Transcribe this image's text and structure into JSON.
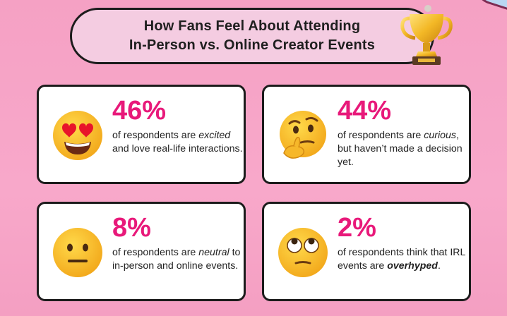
{
  "title": {
    "line1": "How Fans Feel About Attending",
    "line2": "In-Person vs. Online Creator Events"
  },
  "icons": {
    "trophy": "trophy-icon"
  },
  "colors": {
    "background": "#f7a3c5",
    "title_bg": "#f4cce1",
    "accent": "#e8197a"
  },
  "cards": [
    {
      "percent": "46%",
      "emoji": "heart-eyes-emoji-icon",
      "pre": "of respondents are ",
      "emph": "excited",
      "post": " and love real-life interactions."
    },
    {
      "percent": "44%",
      "emoji": "thinking-face-emoji-icon",
      "pre": "of respondents are ",
      "emph": "curious",
      "post": ", but haven’t made a decision yet."
    },
    {
      "percent": "8%",
      "emoji": "neutral-face-emoji-icon",
      "pre": "of respondents are ",
      "emph": "neutral",
      "post": " to in-person and online events."
    },
    {
      "percent": "2%",
      "emoji": "eye-roll-emoji-icon",
      "pre": "of respondents think that IRL events are ",
      "emph": "overhyped",
      "post": "."
    }
  ]
}
